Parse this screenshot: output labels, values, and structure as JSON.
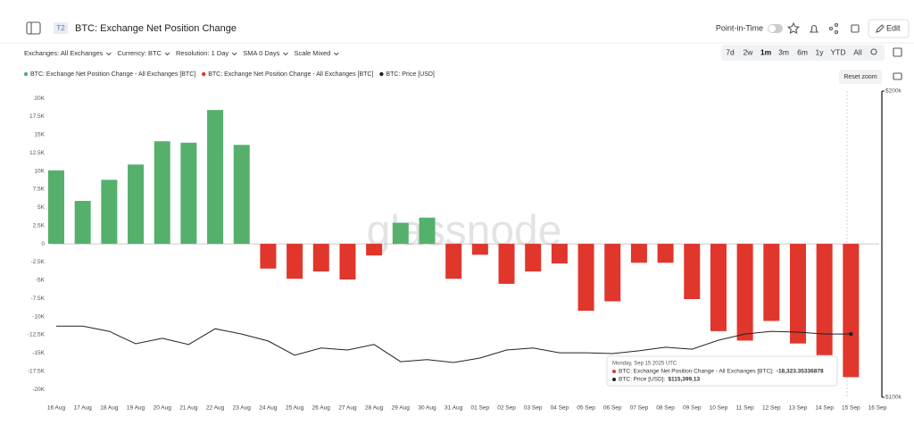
{
  "ui": {
    "badge": "T2",
    "title": "BTC: Exchange Net Position Change",
    "point_in_time": "Point-in-Time",
    "edit": "Edit",
    "filters": [
      "Exchanges: All Exchanges",
      "Currency: BTC",
      "Resolution: 1 Day",
      "SMA 0 Days",
      "Scale Mixed"
    ],
    "ranges": [
      "7d",
      "2w",
      "1m",
      "3m",
      "6m",
      "1y",
      "YTD",
      "All"
    ],
    "active_range": "1m",
    "reset_zoom": "Reset zoom"
  },
  "chart_data": {
    "type": "bar",
    "watermark": "glassnode",
    "categories": [
      "16 Aug",
      "17 Aug",
      "18 Aug",
      "19 Aug",
      "20 Aug",
      "21 Aug",
      "22 Aug",
      "23 Aug",
      "24 Aug",
      "25 Aug",
      "26 Aug",
      "27 Aug",
      "28 Aug",
      "29 Aug",
      "30 Aug",
      "31 Aug",
      "01 Sep",
      "02 Sep",
      "03 Sep",
      "04 Sep",
      "05 Sep",
      "06 Sep",
      "07 Sep",
      "08 Sep",
      "09 Sep",
      "10 Sep",
      "11 Sep",
      "12 Sep",
      "13 Sep",
      "14 Sep",
      "15 Sep",
      "16 Sep"
    ],
    "series": [
      {
        "name": "BTC: Exchange Net Position Change - All Exchanges [BTC]",
        "color": "#55b06c",
        "negative_color": "#e0362c",
        "values": [
          10100,
          5900,
          8800,
          10900,
          14100,
          13900,
          18400,
          13600,
          -3400,
          -4800,
          -3800,
          -4900,
          -1600,
          2900,
          3600,
          -4800,
          -1500,
          -5500,
          -3800,
          -2700,
          -9200,
          -7900,
          -2600,
          -2600,
          -7600,
          -12000,
          -13300,
          -10600,
          -13700,
          -15300,
          -18323.35336878,
          null
        ]
      },
      {
        "name": "BTC: Price [USD]",
        "color": "#222222",
        "axis": "y2",
        "type": "line",
        "values": [
          117500,
          117500,
          116100,
          112900,
          114300,
          112700,
          116800,
          115400,
          113600,
          110000,
          111800,
          111300,
          112700,
          108400,
          108900,
          108200,
          109300,
          111300,
          111800,
          110600,
          110600,
          110400,
          111100,
          112000,
          111500,
          113800,
          115400,
          116100,
          115900,
          115400,
          115399.13,
          null
        ]
      }
    ],
    "ylim": [
      -21100,
      21000
    ],
    "yticks": [
      {
        "value": 20000,
        "label": "20K"
      },
      {
        "value": 17500,
        "label": "17.5K"
      },
      {
        "value": 15000,
        "label": "15K"
      },
      {
        "value": 12500,
        "label": "12.5K"
      },
      {
        "value": 10000,
        "label": "10K"
      },
      {
        "value": 7500,
        "label": "7.5K"
      },
      {
        "value": 5000,
        "label": "5K"
      },
      {
        "value": 2500,
        "label": "2.5K"
      },
      0,
      {
        "value": -2500,
        "label": "-2.5K"
      },
      {
        "value": -5000,
        "label": "-5K"
      },
      {
        "value": -7500,
        "label": "-7.5K"
      },
      {
        "value": -10000,
        "label": "-10K"
      },
      {
        "value": -12500,
        "label": "-12.5K"
      },
      {
        "value": -15000,
        "label": "-15K"
      },
      {
        "value": -17500,
        "label": "-17.5K"
      },
      {
        "value": -20000,
        "label": "-20K"
      }
    ],
    "y2lim": [
      100000,
      200000
    ],
    "y2log": true,
    "y2ticks": [
      {
        "value": 100000,
        "label": "$100k"
      },
      {
        "value": 200000,
        "label": "$200k"
      }
    ],
    "grid": false,
    "tooltip": {
      "title": "Monday, Sep 15 2025 UTC",
      "index": 30,
      "rows": [
        {
          "label": "BTC: Exchange Net Position Change - All Exchanges [BTC]:",
          "value_label": "-18,323.35336878"
        },
        {
          "label": "BTC: Price [USD]:",
          "value_label": "$115,399.13"
        }
      ]
    }
  }
}
